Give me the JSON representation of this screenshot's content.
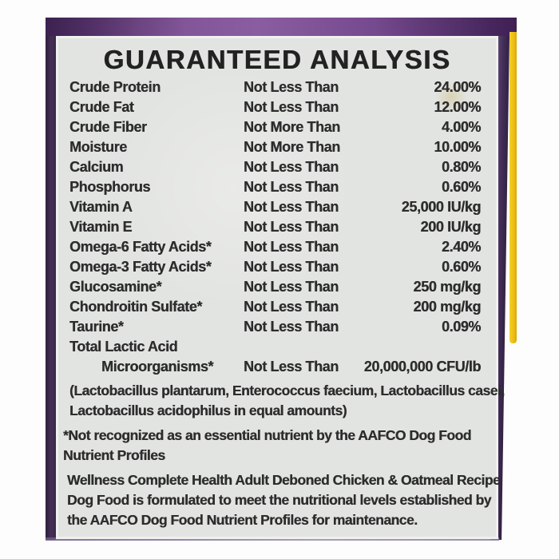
{
  "brand_colors": {
    "package_purple": "#6a4386",
    "edge_purple_dark": "#3e2a50",
    "accent_yellow": "#f0c41c",
    "panel_background": "#e2e4e1",
    "text_color": "#2d2d2d"
  },
  "analysis": {
    "title": "GUARANTEED ANALYSIS",
    "rows": [
      {
        "name": "Crude Protein",
        "qualifier": "Not Less Than",
        "value": "24.00%"
      },
      {
        "name": "Crude Fat",
        "qualifier": "Not Less Than",
        "value": "12.00%"
      },
      {
        "name": "Crude Fiber",
        "qualifier": "Not More Than",
        "value": "4.00%"
      },
      {
        "name": "Moisture",
        "qualifier": "Not More Than",
        "value": "10.00%"
      },
      {
        "name": "Calcium",
        "qualifier": "Not Less Than",
        "value": "0.80%"
      },
      {
        "name": "Phosphorus",
        "qualifier": "Not Less Than",
        "value": "0.60%"
      },
      {
        "name": "Vitamin A",
        "qualifier": "Not Less Than",
        "value": "25,000 IU/kg"
      },
      {
        "name": "Vitamin E",
        "qualifier": "Not Less Than",
        "value": "200 IU/kg"
      },
      {
        "name": "Omega-6 Fatty Acids*",
        "qualifier": "Not Less Than",
        "value": "2.40%"
      },
      {
        "name": "Omega-3 Fatty Acids*",
        "qualifier": "Not Less Than",
        "value": "0.60%"
      },
      {
        "name": "Glucosamine*",
        "qualifier": "Not Less Than",
        "value": "250 mg/kg"
      },
      {
        "name": "Chondroitin Sulfate*",
        "qualifier": "Not Less Than",
        "value": "200 mg/kg"
      },
      {
        "name": "Taurine*",
        "qualifier": "Not Less Than",
        "value": "0.09%"
      }
    ],
    "total_row": {
      "name_line1": "Total Lactic Acid",
      "name_line2": "Microorganisms*",
      "qualifier": "Not Less Than",
      "value": "20,000,000 CFU/lb"
    },
    "bacteria_note_lines": [
      "(Lactobacillus plantarum, Enterococcus faecium, Lactobacillus casei,",
      "Lactobacillus acidophilus in equal amounts)"
    ],
    "footnote_lines": [
      "*Not recognized as an essential nutrient by the AAFCO Dog Food",
      "Nutrient Profiles"
    ],
    "aafco_statement_lines": [
      "Wellness Complete Health Adult Deboned Chicken & Oatmeal Recipe",
      "Dog Food is formulated to meet the nutritional levels established by",
      "the AAFCO Dog Food Nutrient Profiles for maintenance."
    ]
  }
}
